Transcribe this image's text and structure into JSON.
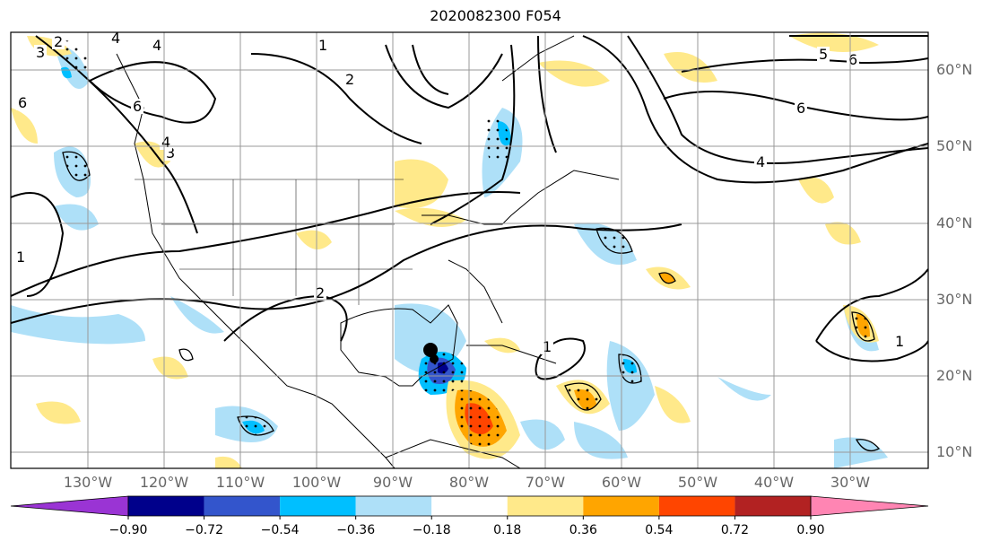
{
  "title": "2020082300 F054",
  "latitude_labels": [
    "60°N",
    "50°N",
    "40°N",
    "30°N",
    "20°N",
    "10°N"
  ],
  "longitude_labels": [
    "130°W",
    "120°W",
    "110°W",
    "100°W",
    "90°W",
    "80°W",
    "70°W",
    "60°W",
    "50°W",
    "40°W",
    "30°W"
  ],
  "colorbar": {
    "ticks": [
      "−0.90",
      "−0.72",
      "−0.54",
      "−0.36",
      "−0.18",
      "0.18",
      "0.36",
      "0.54",
      "0.72",
      "0.90"
    ],
    "colors": [
      "#9a34d4",
      "#00008b",
      "#3355cc",
      "#00bfff",
      "#aee0f8",
      "#ffffff",
      "#ffe98a",
      "#ffa500",
      "#ff4500",
      "#b22222",
      "#ff85b3"
    ]
  },
  "contour_labels": [
    "1",
    "2",
    "3",
    "4",
    "5",
    "6"
  ],
  "colors": {
    "land_line": "#000000",
    "grid": "#999999"
  }
}
